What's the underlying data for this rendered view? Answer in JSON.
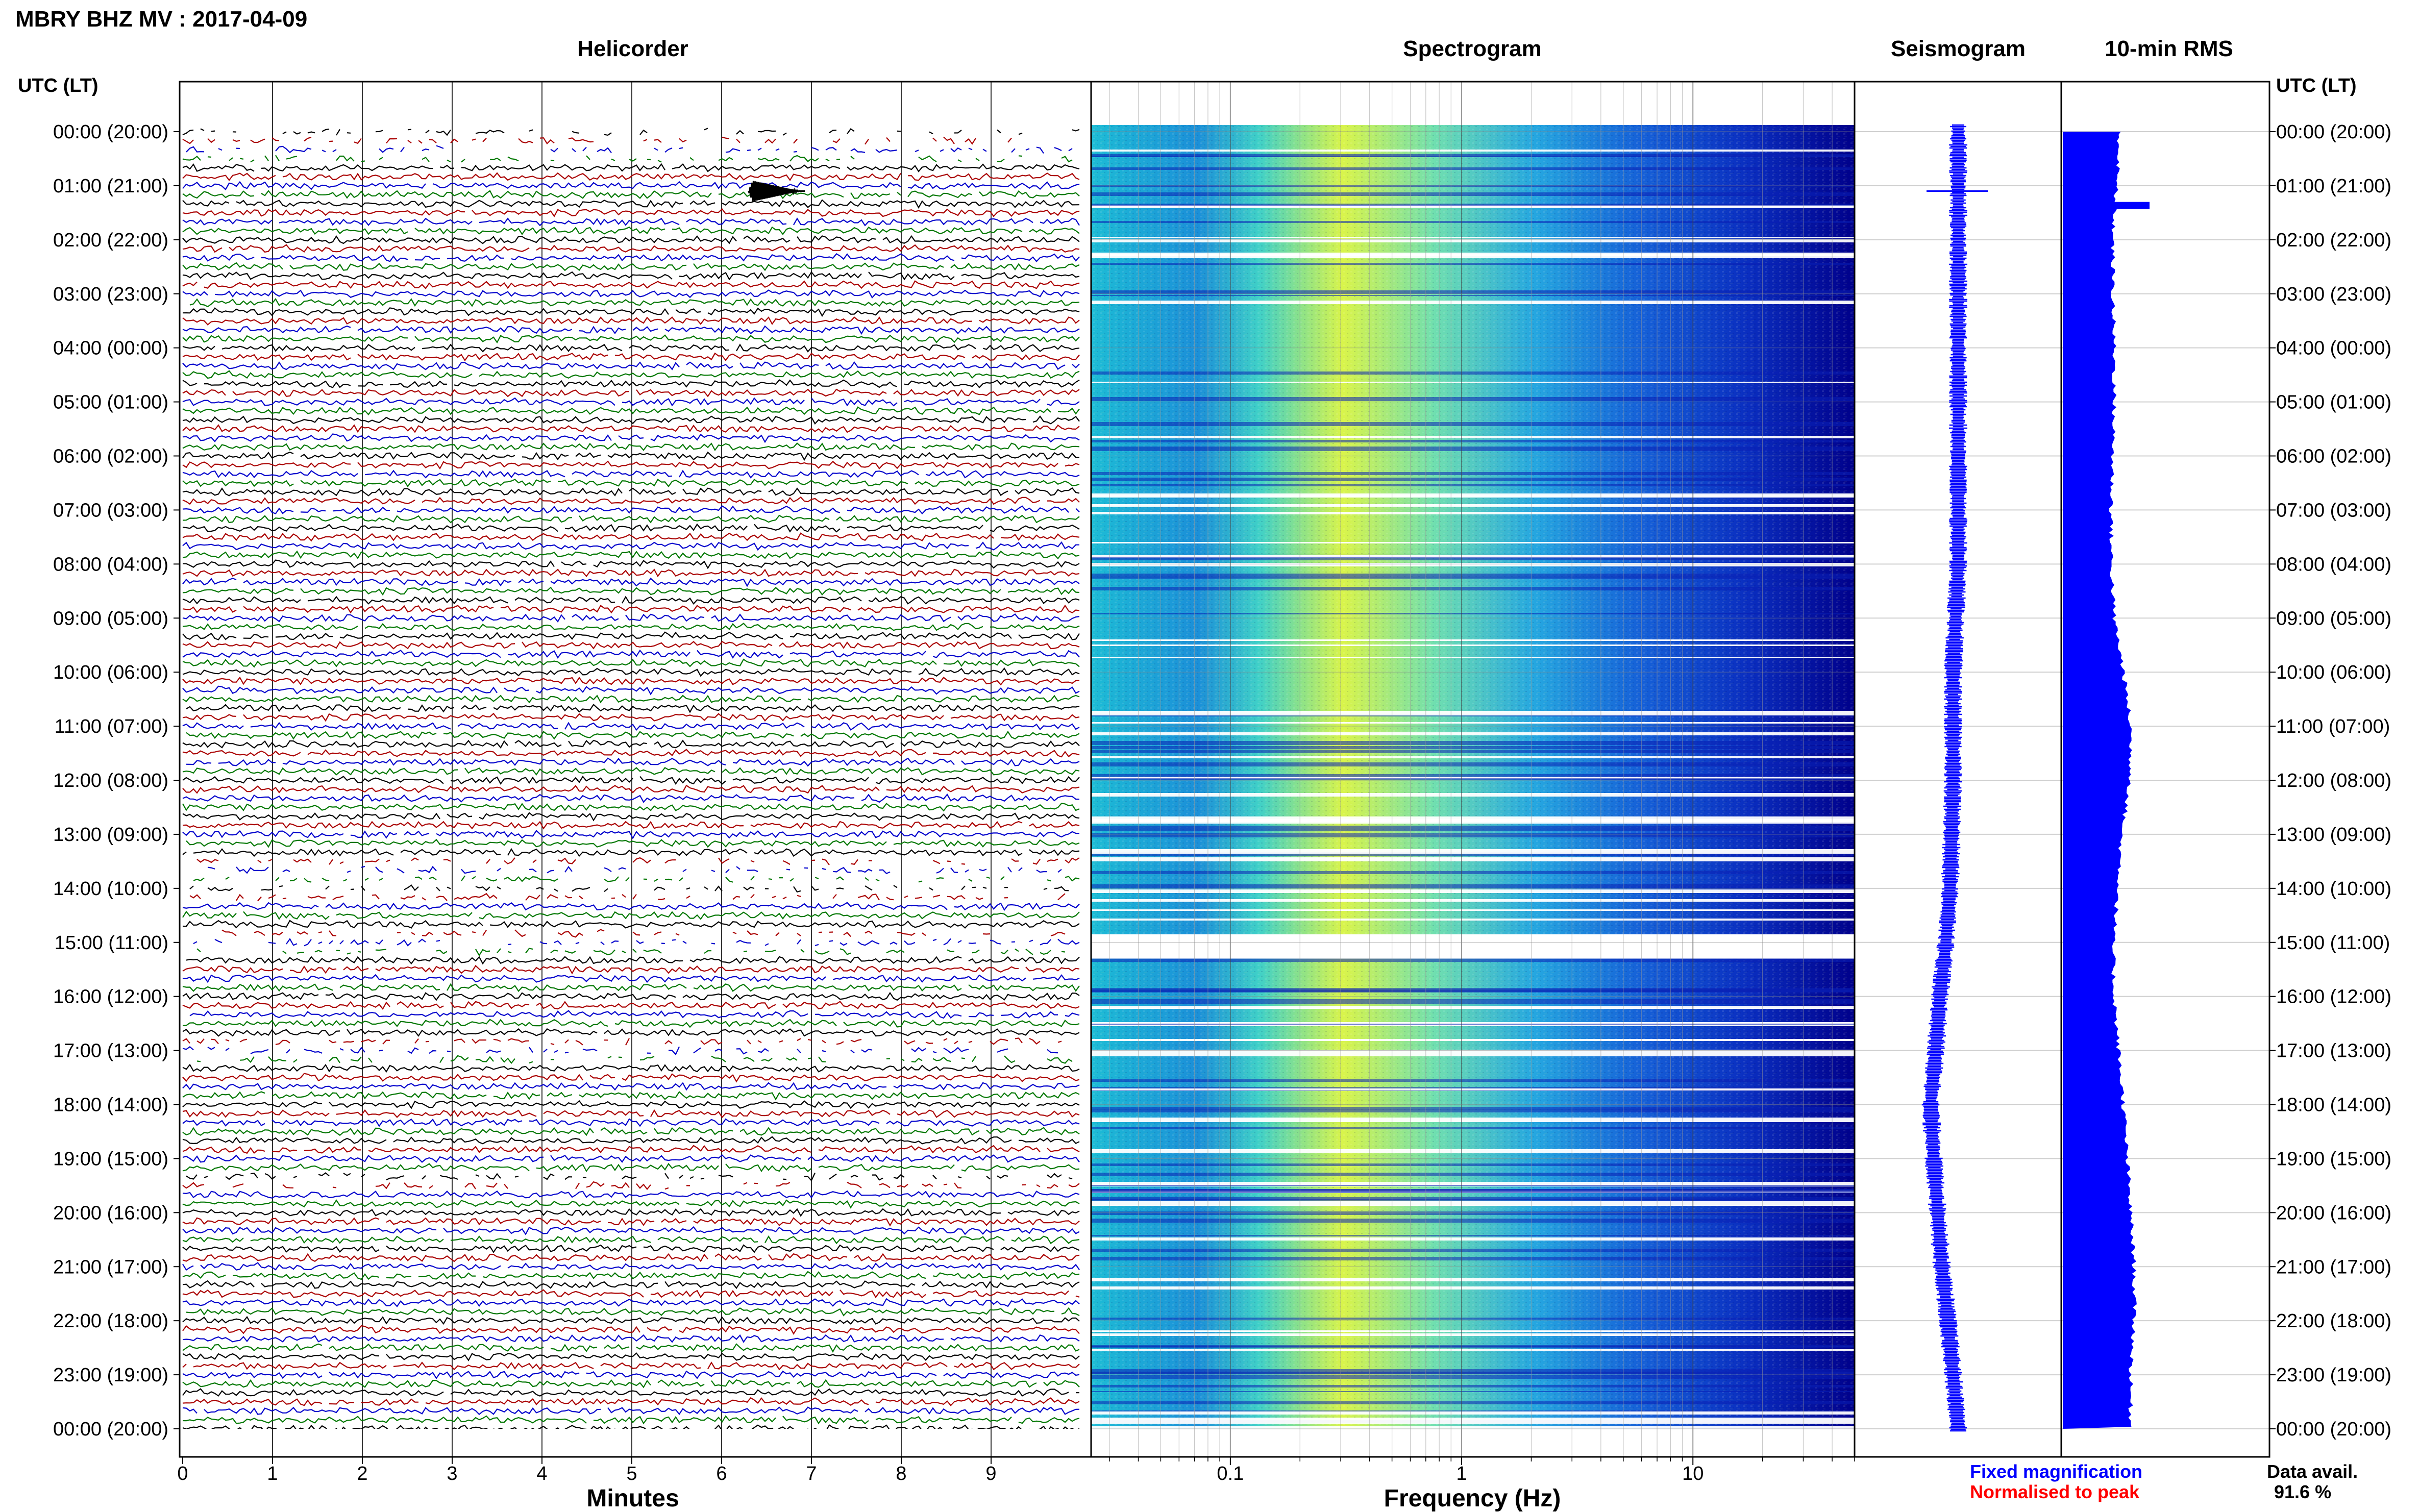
{
  "figure_title": "MBRY BHZ MV : 2017-04-09",
  "time_axis_label": "UTC (LT)",
  "panels": {
    "helicorder": "Helicorder",
    "spectrogram": "Spectrogram",
    "seismogram": "Seismogram",
    "rms": "10-min RMS"
  },
  "time_labels": [
    "00:00 (20:00)",
    "01:00 (21:00)",
    "02:00 (22:00)",
    "03:00 (23:00)",
    "04:00 (00:00)",
    "05:00 (01:00)",
    "06:00 (02:00)",
    "07:00 (03:00)",
    "08:00 (04:00)",
    "09:00 (05:00)",
    "10:00 (06:00)",
    "11:00 (07:00)",
    "12:00 (08:00)",
    "13:00 (09:00)",
    "14:00 (10:00)",
    "15:00 (11:00)",
    "16:00 (12:00)",
    "17:00 (13:00)",
    "18:00 (14:00)",
    "19:00 (15:00)",
    "20:00 (16:00)",
    "21:00 (17:00)",
    "22:00 (18:00)",
    "23:00 (19:00)",
    "00:00 (20:00)"
  ],
  "helicorder_xlabel": "Minutes",
  "helicorder_ticks": [
    "0",
    "1",
    "2",
    "3",
    "4",
    "5",
    "6",
    "7",
    "8",
    "9"
  ],
  "spectrogram_xlabel": "Frequency (Hz)",
  "spectrogram_ticks": [
    "0.1",
    "1",
    "10"
  ],
  "legend": {
    "fixed": "Fixed magnification",
    "normalised": "Normalised to peak"
  },
  "data_avail": {
    "label": "Data avail.",
    "value": "91.6 %"
  },
  "colors": {
    "trace_cycle": [
      "#000000",
      "#aa0000",
      "#0000cc",
      "#007700"
    ],
    "fixed": "#0000ff",
    "normalised": "#ff0000",
    "rms_fill": "#0000ff",
    "spectrogram_low": "#00008b",
    "spectrogram_high": "#ffff33"
  },
  "chart_data": [
    {
      "type": "line",
      "title": "Helicorder",
      "xlabel": "Minutes",
      "xlim": [
        0,
        10
      ],
      "ylim_hours": [
        0,
        24
      ],
      "rows_per_hour": 6,
      "row_minutes": 10,
      "event": {
        "hour": 1.1,
        "minute": 6.3
      },
      "gap_hours": [
        [
          0,
          0.5
        ],
        [
          13.5,
          14.2
        ],
        [
          14.7,
          15.3
        ],
        [
          16.8,
          17.2
        ],
        [
          19.2,
          19.6
        ]
      ]
    },
    {
      "type": "heatmap",
      "title": "Spectrogram",
      "xlabel": "Frequency (Hz)",
      "xscale": "log",
      "xlim": [
        0.025,
        50
      ],
      "peak_frequency_hz": 0.3,
      "gap_hours": [
        [
          14.85,
          15.3
        ]
      ]
    },
    {
      "type": "line",
      "title": "Seismogram",
      "x": [
        0,
        2,
        4,
        6,
        8,
        10,
        12,
        14,
        15,
        16,
        17,
        18,
        19,
        20,
        21,
        22,
        23,
        24
      ],
      "y": [
        0,
        0,
        0,
        0,
        0,
        -0.05,
        -0.05,
        -0.08,
        -0.12,
        -0.18,
        -0.22,
        -0.27,
        -0.24,
        -0.2,
        -0.16,
        -0.1,
        -0.05,
        0
      ]
    },
    {
      "type": "bar",
      "title": "10-min RMS",
      "x": [
        0,
        1,
        2,
        3,
        4,
        5,
        6,
        7,
        8,
        9,
        10,
        11,
        12,
        13,
        14,
        15,
        16,
        17,
        18,
        19,
        20,
        21,
        22,
        23,
        24
      ],
      "values": [
        0.8,
        0.75,
        0.7,
        0.7,
        0.72,
        0.72,
        0.7,
        0.68,
        0.68,
        0.72,
        0.85,
        0.95,
        0.95,
        0.82,
        0.78,
        0.7,
        0.72,
        0.78,
        0.85,
        0.9,
        0.95,
        1.0,
        1.0,
        0.95,
        0.95
      ]
    }
  ]
}
